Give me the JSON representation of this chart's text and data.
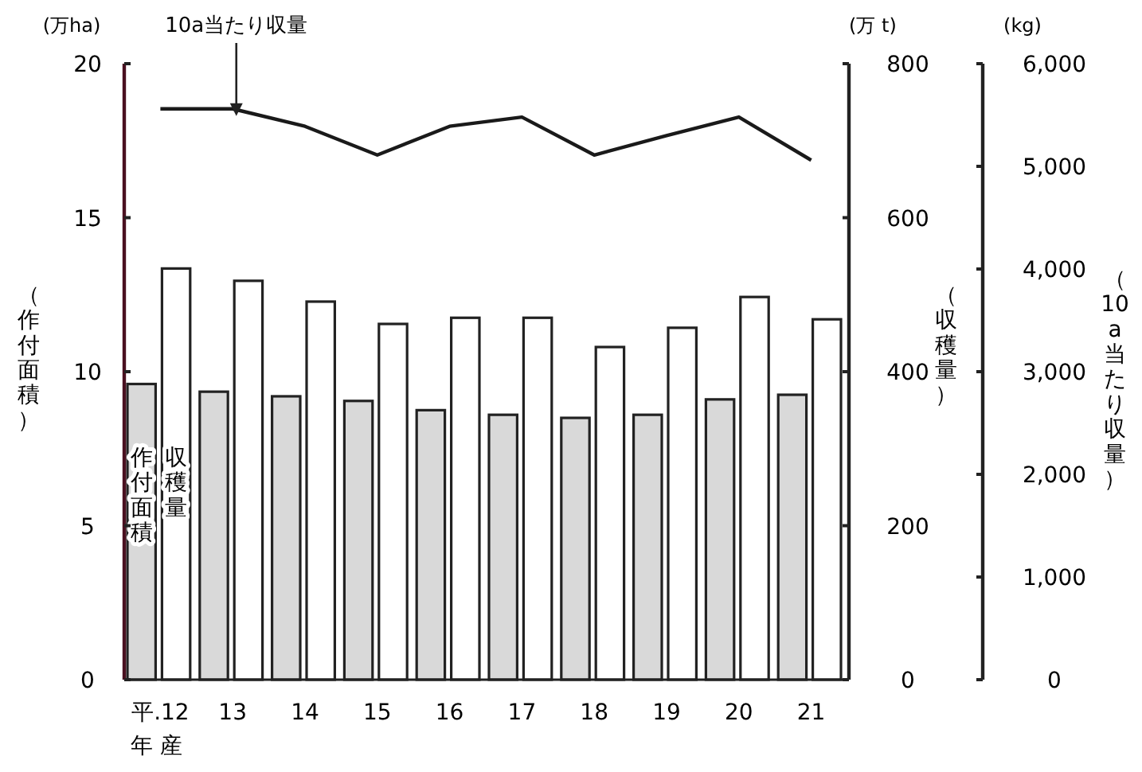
{
  "chart_data": {
    "type": "bar",
    "categories": [
      "平.12",
      "13",
      "14",
      "15",
      "16",
      "17",
      "18",
      "19",
      "20",
      "21"
    ],
    "xlabel": "年 産",
    "ylabel": "（作付面積）",
    "y2label": "（収穫量）",
    "y3label": "（10a当たり収量）",
    "annotations": [
      "(万ha)",
      "(万 t)",
      "(kg)"
    ],
    "series": [
      {
        "name": "作付面積",
        "color": "#d9d9d9",
        "values": [
          9.6,
          9.35,
          9.2,
          9.05,
          8.75,
          8.6,
          8.5,
          8.6,
          9.1,
          9.25
        ]
      },
      {
        "name": "収穫量",
        "color": "#ffffff",
        "axis": "y2",
        "values": [
          534,
          518,
          491,
          462,
          470,
          470,
          432,
          457,
          497,
          468
        ]
      },
      {
        "name": "10a当たり収量",
        "type": "line",
        "color": "#1a1a1a",
        "axis": "y3",
        "values": [
          5560,
          5560,
          5390,
          5110,
          5390,
          5480,
          5110,
          5300,
          5480,
          5060
        ]
      }
    ],
    "ylim": [
      0,
      20
    ],
    "yticks": [
      0,
      5,
      10,
      15,
      20
    ],
    "y2lim": [
      0,
      800
    ],
    "y2ticks": [
      0,
      200,
      400,
      600,
      800
    ],
    "y3lim": [
      0,
      6000
    ],
    "y3ticks": [
      0,
      {
        "value": 1000,
        "label": "1,000"
      },
      {
        "value": 2000,
        "label": "2,000"
      },
      {
        "value": 3000,
        "label": "3,000"
      },
      {
        "value": 4000,
        "label": "4,000"
      },
      {
        "value": 5000,
        "label": "5,000"
      },
      {
        "value": 6000,
        "label": "6,000"
      }
    ]
  }
}
